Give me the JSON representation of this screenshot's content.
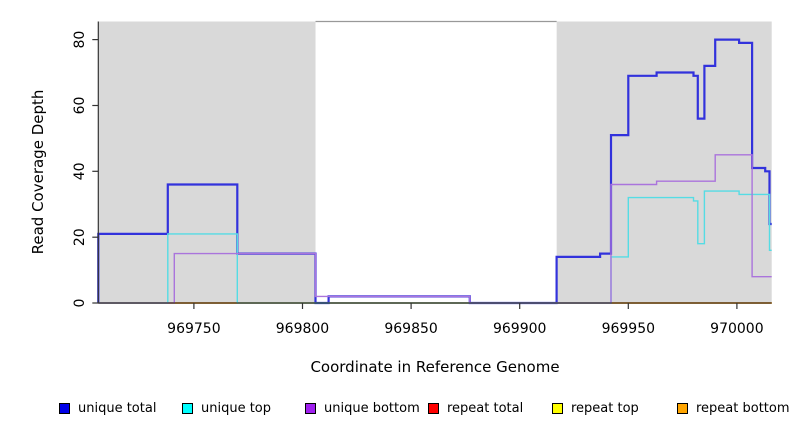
{
  "chart_data": {
    "type": "line",
    "subtype": "step",
    "title": "",
    "xlabel": "Coordinate in Reference Genome",
    "ylabel": "Read Coverage Depth",
    "xlim": [
      969706,
      970016
    ],
    "ylim": [
      0,
      85.5
    ],
    "x_ticks": [
      969750,
      969800,
      969850,
      969900,
      969950,
      970000
    ],
    "y_ticks": [
      0,
      20,
      40,
      60,
      80
    ],
    "grid": false,
    "shade_color": "#D9D9D9",
    "shaded_regions": [
      {
        "x1": 969706,
        "x2": 969806
      },
      {
        "x1": 969917,
        "x2": 970016
      }
    ],
    "legend_position": "bottom",
    "series": [
      {
        "name": "unique total",
        "color": "#3232DC",
        "legend_color": "#0000E8",
        "width": 2.2,
        "points": [
          [
            969706,
            0
          ],
          [
            969706,
            21
          ],
          [
            969738,
            36
          ],
          [
            969770,
            15
          ],
          [
            969806,
            0
          ],
          [
            969812,
            2
          ],
          [
            969877,
            0
          ],
          [
            969917,
            14
          ],
          [
            969937,
            15
          ],
          [
            969942,
            51
          ],
          [
            969950,
            69
          ],
          [
            969963,
            70
          ],
          [
            969980,
            69
          ],
          [
            969982,
            56
          ],
          [
            969985,
            72
          ],
          [
            969990,
            80
          ],
          [
            970001,
            79
          ],
          [
            970007,
            41
          ],
          [
            970013,
            40
          ],
          [
            970015,
            24
          ]
        ]
      },
      {
        "name": "unique top",
        "color": "#55DCE4",
        "legend_color": "#00FFFF",
        "width": 1.4,
        "points": [
          [
            969706,
            0
          ],
          [
            969738,
            21
          ],
          [
            969770,
            0
          ],
          [
            969942,
            14
          ],
          [
            969950,
            32
          ],
          [
            969980,
            31
          ],
          [
            969982,
            18
          ],
          [
            969985,
            34
          ],
          [
            970001,
            33
          ],
          [
            970015,
            16
          ]
        ]
      },
      {
        "name": "unique bottom",
        "color": "#AA74DC",
        "legend_color": "#A020F0",
        "width": 1.4,
        "points": [
          [
            969706,
            0
          ],
          [
            969741,
            15
          ],
          [
            969806,
            2
          ],
          [
            969877,
            0
          ],
          [
            969942,
            36
          ],
          [
            969963,
            37
          ],
          [
            969990,
            45
          ],
          [
            970007,
            8
          ]
        ]
      },
      {
        "name": "repeat total",
        "color": "#DC3232",
        "legend_color": "#FF0000",
        "width": 1.2,
        "points": [
          [
            969706,
            0
          ]
        ]
      },
      {
        "name": "repeat top",
        "color": "#E8E800",
        "legend_color": "#FFFF00",
        "width": 1.2,
        "points": [
          [
            969706,
            0
          ]
        ]
      },
      {
        "name": "repeat bottom",
        "color": "#FF9E1E",
        "legend_color": "#FFA500",
        "width": 1.8,
        "points": [
          [
            969706,
            0
          ]
        ]
      }
    ],
    "draw_order": [
      3,
      4,
      5,
      0,
      1,
      2
    ]
  },
  "legend": {
    "entries": [
      {
        "label": "unique total",
        "color": "#0000E8"
      },
      {
        "label": "unique top",
        "color": "#00FFFF"
      },
      {
        "label": "unique bottom",
        "color": "#A020F0"
      },
      {
        "label": "repeat total",
        "color": "#FF0000"
      },
      {
        "label": "repeat top",
        "color": "#FFFF00"
      },
      {
        "label": "repeat bottom",
        "color": "#FFA500"
      }
    ]
  }
}
